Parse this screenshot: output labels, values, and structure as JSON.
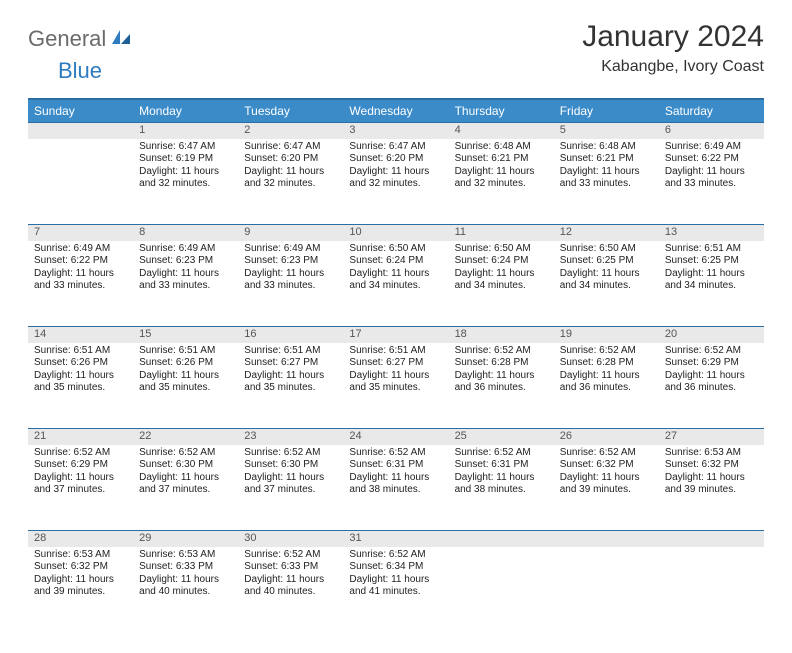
{
  "logo": {
    "part1": "General",
    "part2": "Blue"
  },
  "title": "January 2024",
  "location": "Kabangbe, Ivory Coast",
  "colors": {
    "header_bg": "#3b8bc9",
    "header_border": "#2a6ea3",
    "daynum_bg": "#e9e9e9",
    "logo_gray": "#6b6b6b",
    "logo_blue": "#2f7bbf"
  },
  "weekdays": [
    "Sunday",
    "Monday",
    "Tuesday",
    "Wednesday",
    "Thursday",
    "Friday",
    "Saturday"
  ],
  "weeks": [
    [
      {
        "num": "",
        "sunrise": "",
        "sunset": "",
        "daylight": ""
      },
      {
        "num": "1",
        "sunrise": "Sunrise: 6:47 AM",
        "sunset": "Sunset: 6:19 PM",
        "daylight": "Daylight: 11 hours and 32 minutes."
      },
      {
        "num": "2",
        "sunrise": "Sunrise: 6:47 AM",
        "sunset": "Sunset: 6:20 PM",
        "daylight": "Daylight: 11 hours and 32 minutes."
      },
      {
        "num": "3",
        "sunrise": "Sunrise: 6:47 AM",
        "sunset": "Sunset: 6:20 PM",
        "daylight": "Daylight: 11 hours and 32 minutes."
      },
      {
        "num": "4",
        "sunrise": "Sunrise: 6:48 AM",
        "sunset": "Sunset: 6:21 PM",
        "daylight": "Daylight: 11 hours and 32 minutes."
      },
      {
        "num": "5",
        "sunrise": "Sunrise: 6:48 AM",
        "sunset": "Sunset: 6:21 PM",
        "daylight": "Daylight: 11 hours and 33 minutes."
      },
      {
        "num": "6",
        "sunrise": "Sunrise: 6:49 AM",
        "sunset": "Sunset: 6:22 PM",
        "daylight": "Daylight: 11 hours and 33 minutes."
      }
    ],
    [
      {
        "num": "7",
        "sunrise": "Sunrise: 6:49 AM",
        "sunset": "Sunset: 6:22 PM",
        "daylight": "Daylight: 11 hours and 33 minutes."
      },
      {
        "num": "8",
        "sunrise": "Sunrise: 6:49 AM",
        "sunset": "Sunset: 6:23 PM",
        "daylight": "Daylight: 11 hours and 33 minutes."
      },
      {
        "num": "9",
        "sunrise": "Sunrise: 6:49 AM",
        "sunset": "Sunset: 6:23 PM",
        "daylight": "Daylight: 11 hours and 33 minutes."
      },
      {
        "num": "10",
        "sunrise": "Sunrise: 6:50 AM",
        "sunset": "Sunset: 6:24 PM",
        "daylight": "Daylight: 11 hours and 34 minutes."
      },
      {
        "num": "11",
        "sunrise": "Sunrise: 6:50 AM",
        "sunset": "Sunset: 6:24 PM",
        "daylight": "Daylight: 11 hours and 34 minutes."
      },
      {
        "num": "12",
        "sunrise": "Sunrise: 6:50 AM",
        "sunset": "Sunset: 6:25 PM",
        "daylight": "Daylight: 11 hours and 34 minutes."
      },
      {
        "num": "13",
        "sunrise": "Sunrise: 6:51 AM",
        "sunset": "Sunset: 6:25 PM",
        "daylight": "Daylight: 11 hours and 34 minutes."
      }
    ],
    [
      {
        "num": "14",
        "sunrise": "Sunrise: 6:51 AM",
        "sunset": "Sunset: 6:26 PM",
        "daylight": "Daylight: 11 hours and 35 minutes."
      },
      {
        "num": "15",
        "sunrise": "Sunrise: 6:51 AM",
        "sunset": "Sunset: 6:26 PM",
        "daylight": "Daylight: 11 hours and 35 minutes."
      },
      {
        "num": "16",
        "sunrise": "Sunrise: 6:51 AM",
        "sunset": "Sunset: 6:27 PM",
        "daylight": "Daylight: 11 hours and 35 minutes."
      },
      {
        "num": "17",
        "sunrise": "Sunrise: 6:51 AM",
        "sunset": "Sunset: 6:27 PM",
        "daylight": "Daylight: 11 hours and 35 minutes."
      },
      {
        "num": "18",
        "sunrise": "Sunrise: 6:52 AM",
        "sunset": "Sunset: 6:28 PM",
        "daylight": "Daylight: 11 hours and 36 minutes."
      },
      {
        "num": "19",
        "sunrise": "Sunrise: 6:52 AM",
        "sunset": "Sunset: 6:28 PM",
        "daylight": "Daylight: 11 hours and 36 minutes."
      },
      {
        "num": "20",
        "sunrise": "Sunrise: 6:52 AM",
        "sunset": "Sunset: 6:29 PM",
        "daylight": "Daylight: 11 hours and 36 minutes."
      }
    ],
    [
      {
        "num": "21",
        "sunrise": "Sunrise: 6:52 AM",
        "sunset": "Sunset: 6:29 PM",
        "daylight": "Daylight: 11 hours and 37 minutes."
      },
      {
        "num": "22",
        "sunrise": "Sunrise: 6:52 AM",
        "sunset": "Sunset: 6:30 PM",
        "daylight": "Daylight: 11 hours and 37 minutes."
      },
      {
        "num": "23",
        "sunrise": "Sunrise: 6:52 AM",
        "sunset": "Sunset: 6:30 PM",
        "daylight": "Daylight: 11 hours and 37 minutes."
      },
      {
        "num": "24",
        "sunrise": "Sunrise: 6:52 AM",
        "sunset": "Sunset: 6:31 PM",
        "daylight": "Daylight: 11 hours and 38 minutes."
      },
      {
        "num": "25",
        "sunrise": "Sunrise: 6:52 AM",
        "sunset": "Sunset: 6:31 PM",
        "daylight": "Daylight: 11 hours and 38 minutes."
      },
      {
        "num": "26",
        "sunrise": "Sunrise: 6:52 AM",
        "sunset": "Sunset: 6:32 PM",
        "daylight": "Daylight: 11 hours and 39 minutes."
      },
      {
        "num": "27",
        "sunrise": "Sunrise: 6:53 AM",
        "sunset": "Sunset: 6:32 PM",
        "daylight": "Daylight: 11 hours and 39 minutes."
      }
    ],
    [
      {
        "num": "28",
        "sunrise": "Sunrise: 6:53 AM",
        "sunset": "Sunset: 6:32 PM",
        "daylight": "Daylight: 11 hours and 39 minutes."
      },
      {
        "num": "29",
        "sunrise": "Sunrise: 6:53 AM",
        "sunset": "Sunset: 6:33 PM",
        "daylight": "Daylight: 11 hours and 40 minutes."
      },
      {
        "num": "30",
        "sunrise": "Sunrise: 6:52 AM",
        "sunset": "Sunset: 6:33 PM",
        "daylight": "Daylight: 11 hours and 40 minutes."
      },
      {
        "num": "31",
        "sunrise": "Sunrise: 6:52 AM",
        "sunset": "Sunset: 6:34 PM",
        "daylight": "Daylight: 11 hours and 41 minutes."
      },
      {
        "num": "",
        "sunrise": "",
        "sunset": "",
        "daylight": ""
      },
      {
        "num": "",
        "sunrise": "",
        "sunset": "",
        "daylight": ""
      },
      {
        "num": "",
        "sunrise": "",
        "sunset": "",
        "daylight": ""
      }
    ]
  ]
}
